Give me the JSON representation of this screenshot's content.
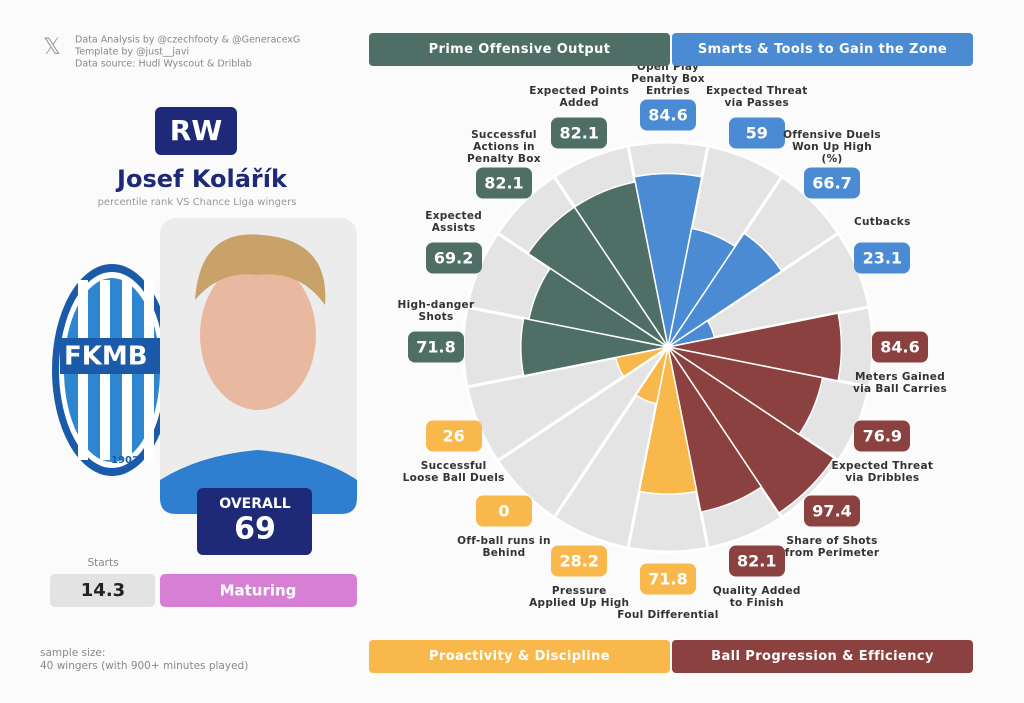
{
  "credits": [
    "Data Analysis by @czechfooty & @GeneracexG",
    "Template by @just__javi",
    "Data source: Hudl Wyscout & Driblab"
  ],
  "player": {
    "position": "RW",
    "name": "Josef Kolářík",
    "subtitle": "percentile rank VS Chance Liga wingers",
    "overall_label": "OVERALL",
    "overall": 69,
    "starts_label": "Starts",
    "starts": 14.3,
    "status": "Maturing"
  },
  "club": {
    "name": "FKMB",
    "year": "1902"
  },
  "footer": [
    "sample size:",
    "40 wingers (with 900+ minutes played)"
  ],
  "chart_data": {
    "type": "pizza",
    "rlim": [
      0,
      100
    ],
    "series": [
      {
        "name": "Smarts & Tools to Gain the Zone",
        "color": "#4a8bd4",
        "categories": [
          "Open Play Penalty Box Entries",
          "Expected Threat via Passes",
          "Offensive Duels Won Up High (%)",
          "Cutbacks"
        ],
        "values": [
          84.6,
          59,
          66.7,
          23.1
        ]
      },
      {
        "name": "Ball Progression & Efficiency",
        "color": "#8c4141",
        "categories": [
          "Meters Gained via Ball Carries",
          "Expected Threat via Dribbles",
          "Share of Shots from Perimeter",
          "Quality Added to Finish"
        ],
        "values": [
          84.6,
          76.9,
          97.4,
          82.1
        ]
      },
      {
        "name": "Proactivity & Discipline",
        "color": "#f8b84c",
        "categories": [
          "Foul Differential",
          "Pressure Applied Up High",
          "Off-ball runs in Behind",
          "Successful Loose Ball Duels"
        ],
        "values": [
          71.8,
          28.2,
          0,
          26
        ]
      },
      {
        "name": "Prime Offensive Output",
        "color": "#4e6e66",
        "categories": [
          "High-danger Shots",
          "Expected Assists",
          "Successful Actions in Penalty Box",
          "Expected Points Added"
        ],
        "values": [
          71.8,
          69.2,
          82.1,
          82.1
        ]
      }
    ]
  }
}
